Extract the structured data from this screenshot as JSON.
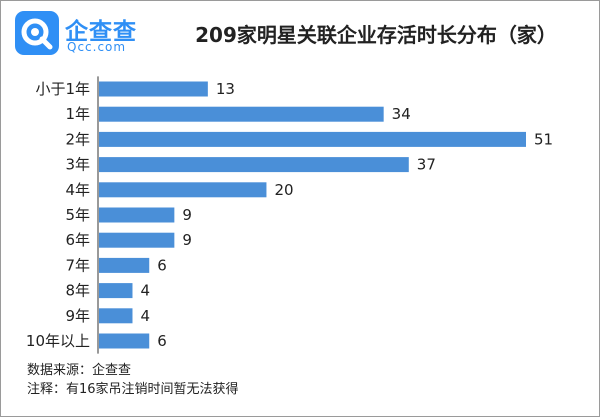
{
  "logo": {
    "name": "企查查",
    "subtitle": "Qcc.com",
    "brand_color": "#2f8ff5"
  },
  "chart_data": {
    "type": "bar",
    "orientation": "horizontal",
    "title": "209家明星关联企业存活时长分布（家）",
    "categories": [
      "小于1年",
      "1年",
      "2年",
      "3年",
      "4年",
      "5年",
      "6年",
      "7年",
      "8年",
      "9年",
      "10年以上"
    ],
    "values": [
      13,
      34,
      51,
      37,
      20,
      9,
      9,
      6,
      4,
      4,
      6
    ],
    "bar_color": "#4a8fd8",
    "data_labels": true,
    "grid": false,
    "xlim": [
      0,
      51
    ]
  },
  "footer": {
    "source": "数据来源：企查查",
    "note": "注释：有16家吊注销时间暂无法获得"
  }
}
